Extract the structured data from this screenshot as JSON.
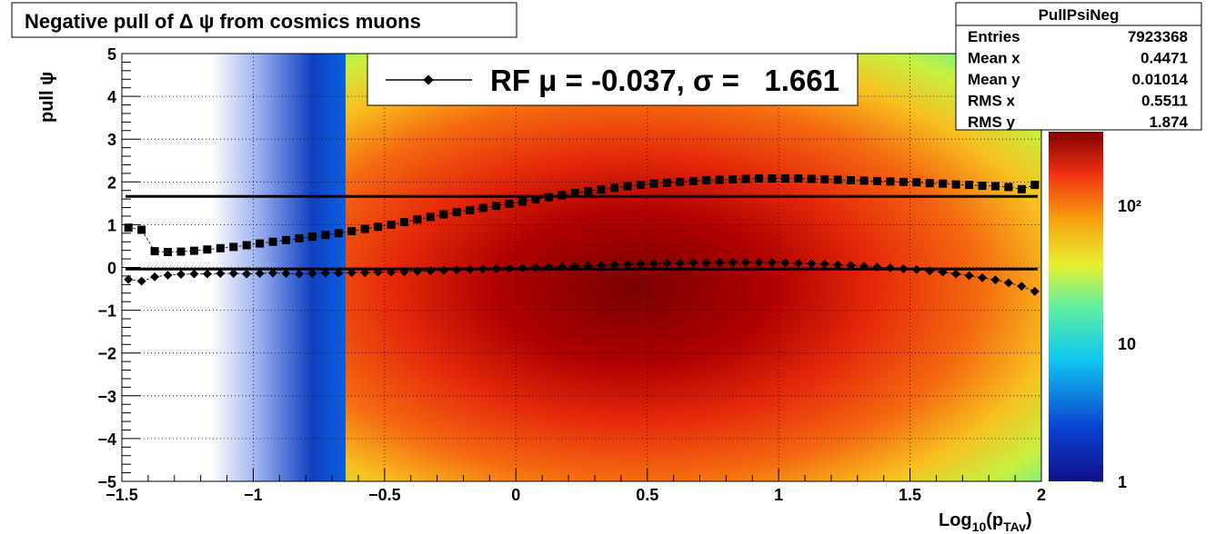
{
  "chart_data": {
    "type": "heatmap_profile",
    "title": "Negative pull of Δ ψ from cosmics muons",
    "y_label": "pull ψ",
    "x_label_parts": [
      "Log",
      "10",
      "(p",
      "TAv",
      ")"
    ],
    "xlim": [
      -1.5,
      2
    ],
    "xticks": [
      {
        "value": -1.5,
        "label": "−1.5"
      },
      {
        "value": -1,
        "label": "−1"
      },
      {
        "value": -0.5,
        "label": "−0.5"
      },
      0,
      0.5,
      1,
      1.5,
      2
    ],
    "ylim": [
      -5,
      5
    ],
    "yticks": [
      {
        "value": -5,
        "label": "−5"
      },
      {
        "value": -4,
        "label": "−4"
      },
      {
        "value": -3,
        "label": "−3"
      },
      {
        "value": -2,
        "label": "−2"
      },
      {
        "value": -1,
        "label": "−1"
      },
      0,
      1,
      2,
      3,
      4,
      5
    ],
    "grid": true,
    "z_log": true,
    "zlim": [
      1,
      340
    ],
    "zticks": [
      1,
      10,
      {
        "value": 100,
        "label": "10²"
      }
    ],
    "x": [
      -1.475,
      -1.425,
      -1.375,
      -1.325,
      -1.275,
      -1.225,
      -1.175,
      -1.125,
      -1.075,
      -1.025,
      -0.975,
      -0.925,
      -0.875,
      -0.825,
      -0.775,
      -0.725,
      -0.675,
      -0.625,
      -0.575,
      -0.525,
      -0.475,
      -0.425,
      -0.375,
      -0.325,
      -0.275,
      -0.225,
      -0.175,
      -0.125,
      -0.075,
      -0.025,
      0.025,
      0.075,
      0.125,
      0.175,
      0.225,
      0.275,
      0.325,
      0.375,
      0.425,
      0.475,
      0.525,
      0.575,
      0.625,
      0.675,
      0.725,
      0.775,
      0.825,
      0.875,
      0.925,
      0.975,
      1.025,
      1.075,
      1.125,
      1.175,
      1.225,
      1.275,
      1.325,
      1.375,
      1.425,
      1.475,
      1.525,
      1.575,
      1.625,
      1.675,
      1.725,
      1.775,
      1.825,
      1.875,
      1.925,
      1.975
    ],
    "series": [
      {
        "name": "RF μ = -0.037, σ =   1.661",
        "marker": "diamond",
        "color": "#000000",
        "values": [
          -0.28,
          -0.32,
          -0.22,
          -0.18,
          -0.16,
          -0.15,
          -0.15,
          -0.14,
          -0.14,
          -0.15,
          -0.14,
          -0.13,
          -0.14,
          -0.15,
          -0.14,
          -0.13,
          -0.13,
          -0.12,
          -0.12,
          -0.11,
          -0.11,
          -0.1,
          -0.09,
          -0.08,
          -0.07,
          -0.06,
          -0.05,
          -0.04,
          -0.03,
          -0.02,
          -0.01,
          0.0,
          0.01,
          0.02,
          0.03,
          0.04,
          0.05,
          0.06,
          0.07,
          0.08,
          0.09,
          0.1,
          0.1,
          0.11,
          0.11,
          0.12,
          0.12,
          0.12,
          0.12,
          0.12,
          0.11,
          0.1,
          0.09,
          0.08,
          0.06,
          0.05,
          0.03,
          0.01,
          -0.01,
          -0.03,
          -0.05,
          -0.08,
          -0.11,
          -0.15,
          -0.19,
          -0.24,
          -0.29,
          -0.36,
          -0.44,
          -0.56
        ]
      },
      {
        "marker": "square",
        "color": "#000000",
        "values": [
          0.93,
          0.88,
          0.38,
          0.36,
          0.37,
          0.39,
          0.42,
          0.45,
          0.48,
          0.52,
          0.56,
          0.6,
          0.64,
          0.68,
          0.72,
          0.76,
          0.8,
          0.85,
          0.9,
          0.95,
          1.0,
          1.06,
          1.12,
          1.18,
          1.24,
          1.29,
          1.34,
          1.39,
          1.44,
          1.49,
          1.54,
          1.59,
          1.64,
          1.69,
          1.74,
          1.78,
          1.82,
          1.86,
          1.9,
          1.93,
          1.96,
          1.98,
          2.0,
          2.02,
          2.04,
          2.05,
          2.06,
          2.07,
          2.08,
          2.08,
          2.08,
          2.08,
          2.07,
          2.06,
          2.05,
          2.04,
          2.03,
          2.02,
          2.01,
          2.0,
          1.99,
          1.97,
          1.96,
          1.94,
          1.93,
          1.91,
          1.9,
          1.88,
          1.83,
          1.93
        ]
      }
    ],
    "hlines": [
      -0.037,
      1.661
    ],
    "stats": {
      "title": "PullPsiNeg",
      "rows": [
        [
          "Entries",
          7923368
        ],
        [
          "Mean x",
          0.4471
        ],
        [
          "Mean y",
          0.01014
        ],
        [
          "RMS x",
          0.5511
        ],
        [
          "RMS y",
          1.874
        ]
      ]
    }
  }
}
